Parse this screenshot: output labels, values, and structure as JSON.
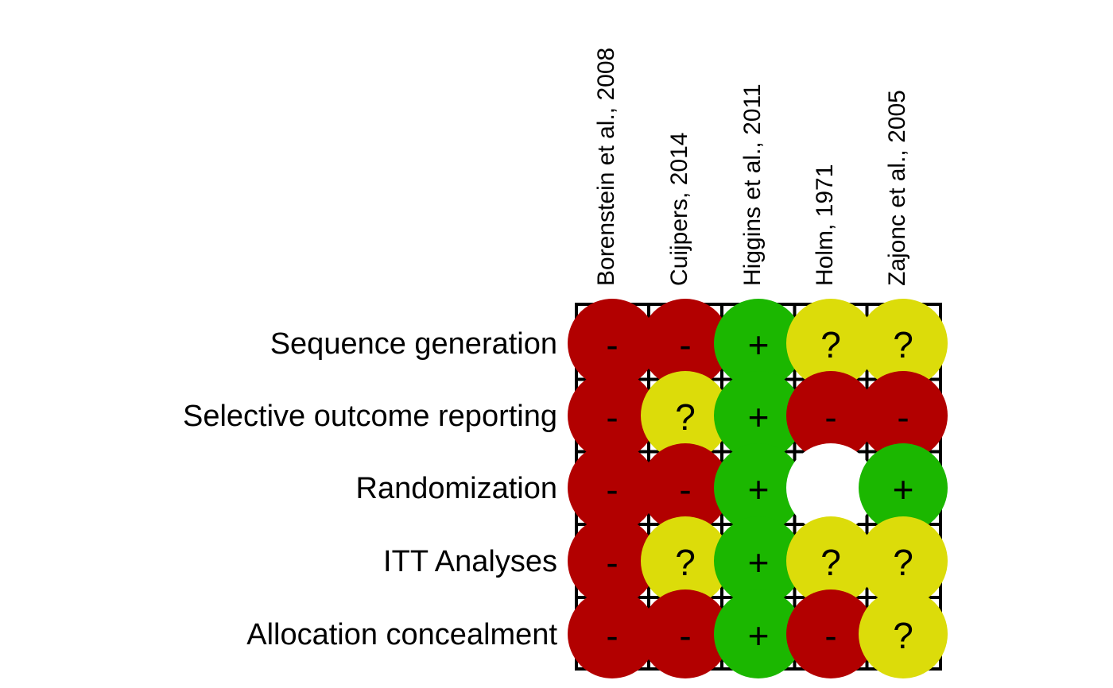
{
  "chart_data": {
    "type": "heatmap",
    "title": "",
    "studies": [
      "Borenstein et al., 2008",
      "Cuijpers, 2014",
      "Higgins et al., 2011",
      "Holm, 1971",
      "Zajonc et al., 2005"
    ],
    "domains": [
      "Sequence generation",
      "Selective outcome reporting",
      "Randomization",
      "ITT Analyses",
      "Allocation concealment"
    ],
    "judgements": [
      [
        "-",
        "-",
        "+",
        "?",
        "?"
      ],
      [
        "-",
        "?",
        "+",
        "-",
        "-"
      ],
      [
        "-",
        "-",
        "+",
        "",
        "+"
      ],
      [
        "-",
        "?",
        "+",
        "?",
        "?"
      ],
      [
        "-",
        "-",
        "+",
        "-",
        "?"
      ]
    ],
    "colors": {
      "-": "#b20000",
      "+": "#1bb700",
      "?": "#dcdc0a",
      "": "#ffffff"
    },
    "grid": true,
    "legend": "none"
  }
}
